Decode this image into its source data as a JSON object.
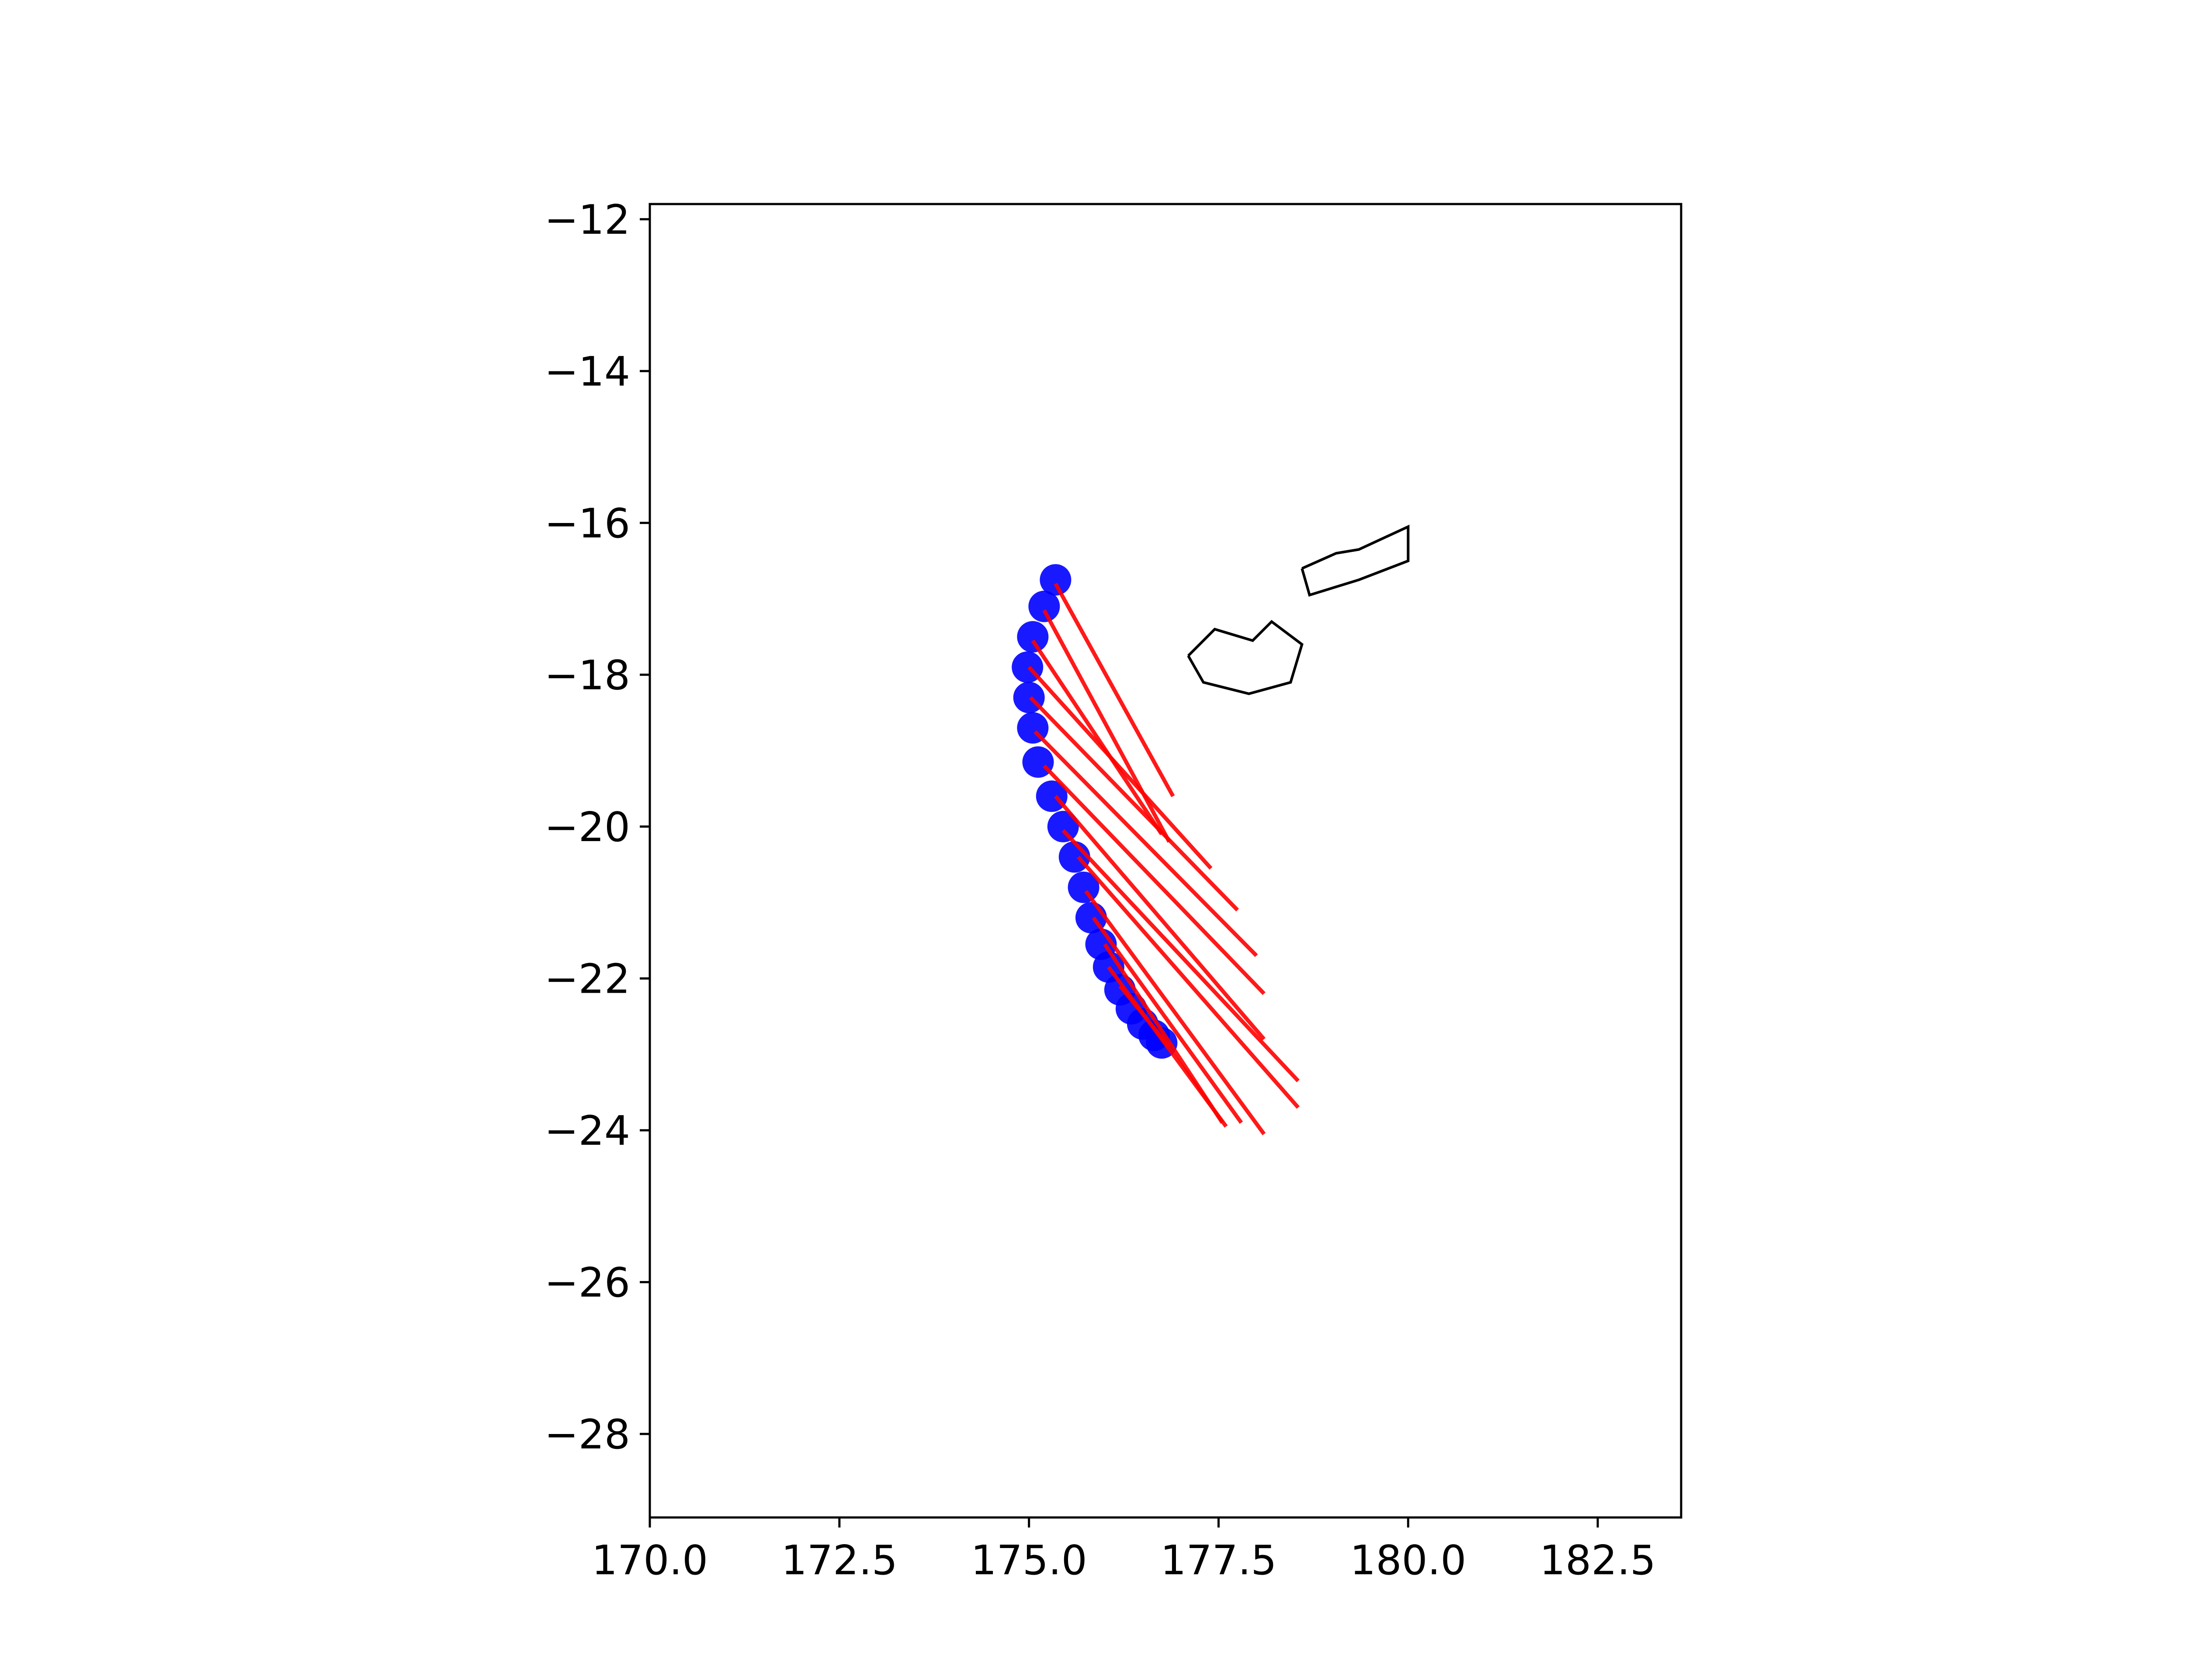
{
  "chart_data": {
    "type": "scatter",
    "title": "",
    "xlabel": "",
    "ylabel": "",
    "xlim": [
      170.0,
      183.6
    ],
    "ylim": [
      -29.1,
      -11.8
    ],
    "grid": false,
    "legend": "none",
    "x_ticks": [
      170.0,
      172.5,
      175.0,
      177.5,
      180.0,
      182.5
    ],
    "x_tick_labels": [
      "170.0",
      "172.5",
      "175.0",
      "177.5",
      "180.0",
      "182.5"
    ],
    "y_ticks": [
      -12,
      -14,
      -16,
      -18,
      -20,
      -22,
      -24,
      -26,
      -28
    ],
    "y_tick_labels": [
      "−12",
      "−14",
      "−16",
      "−18",
      "−20",
      "−22",
      "−24",
      "−26",
      "−28"
    ],
    "points": [
      {
        "x": 175.35,
        "y": -16.75
      },
      {
        "x": 175.2,
        "y": -17.1
      },
      {
        "x": 175.05,
        "y": -17.5
      },
      {
        "x": 174.98,
        "y": -17.9
      },
      {
        "x": 175.0,
        "y": -18.3
      },
      {
        "x": 175.05,
        "y": -18.7
      },
      {
        "x": 175.12,
        "y": -19.15
      },
      {
        "x": 175.3,
        "y": -19.6
      },
      {
        "x": 175.45,
        "y": -20.0
      },
      {
        "x": 175.6,
        "y": -20.4
      },
      {
        "x": 175.72,
        "y": -20.8
      },
      {
        "x": 175.82,
        "y": -21.2
      },
      {
        "x": 175.95,
        "y": -21.55
      },
      {
        "x": 176.05,
        "y": -21.85
      },
      {
        "x": 176.2,
        "y": -22.15
      },
      {
        "x": 176.35,
        "y": -22.4
      },
      {
        "x": 176.5,
        "y": -22.6
      },
      {
        "x": 176.65,
        "y": -22.75
      },
      {
        "x": 176.75,
        "y": -22.85
      }
    ],
    "vectors": [
      {
        "x0": 175.35,
        "y0": -16.8,
        "x1": 176.9,
        "y1": -19.6
      },
      {
        "x0": 175.2,
        "y0": -17.15,
        "x1": 176.85,
        "y1": -20.2
      },
      {
        "x0": 175.05,
        "y0": -17.55,
        "x1": 176.75,
        "y1": -20.1
      },
      {
        "x0": 175.0,
        "y0": -17.9,
        "x1": 177.4,
        "y1": -20.55
      },
      {
        "x0": 175.02,
        "y0": -18.3,
        "x1": 177.75,
        "y1": -21.1
      },
      {
        "x0": 175.08,
        "y0": -18.75,
        "x1": 178.0,
        "y1": -21.7
      },
      {
        "x0": 175.2,
        "y0": -19.2,
        "x1": 178.1,
        "y1": -22.2
      },
      {
        "x0": 175.35,
        "y0": -19.6,
        "x1": 178.1,
        "y1": -22.8
      },
      {
        "x0": 175.45,
        "y0": -20.05,
        "x1": 178.55,
        "y1": -23.35
      },
      {
        "x0": 175.65,
        "y0": -20.4,
        "x1": 178.55,
        "y1": -23.7
      },
      {
        "x0": 175.75,
        "y0": -20.85,
        "x1": 178.1,
        "y1": -24.05
      },
      {
        "x0": 175.85,
        "y0": -21.2,
        "x1": 177.8,
        "y1": -23.9
      },
      {
        "x0": 176.0,
        "y0": -21.55,
        "x1": 177.55,
        "y1": -23.9
      },
      {
        "x0": 176.05,
        "y0": -21.85,
        "x1": 177.6,
        "y1": -23.95
      },
      {
        "x0": 176.2,
        "y0": -22.1,
        "x1": 176.85,
        "y1": -22.9
      }
    ],
    "outlines": [
      {
        "name": "",
        "points": [
          [
            177.1,
            -17.75
          ],
          [
            177.45,
            -17.4
          ],
          [
            177.95,
            -17.55
          ],
          [
            178.2,
            -17.3
          ],
          [
            178.6,
            -17.6
          ],
          [
            178.45,
            -18.1
          ],
          [
            177.9,
            -18.25
          ],
          [
            177.3,
            -18.1
          ],
          [
            177.1,
            -17.75
          ]
        ]
      },
      {
        "name": "",
        "points": [
          [
            178.6,
            -16.6
          ],
          [
            179.05,
            -16.4
          ],
          [
            179.35,
            -16.35
          ],
          [
            180.0,
            -16.05
          ],
          [
            180.0,
            -16.5
          ],
          [
            179.35,
            -16.75
          ],
          [
            178.7,
            -16.95
          ],
          [
            178.6,
            -16.6
          ]
        ]
      }
    ],
    "colors": {
      "points": "#0000ff",
      "vectors": "#ff0000",
      "outlines": "#000000",
      "axes": "#000000",
      "background": "#ffffff"
    }
  }
}
